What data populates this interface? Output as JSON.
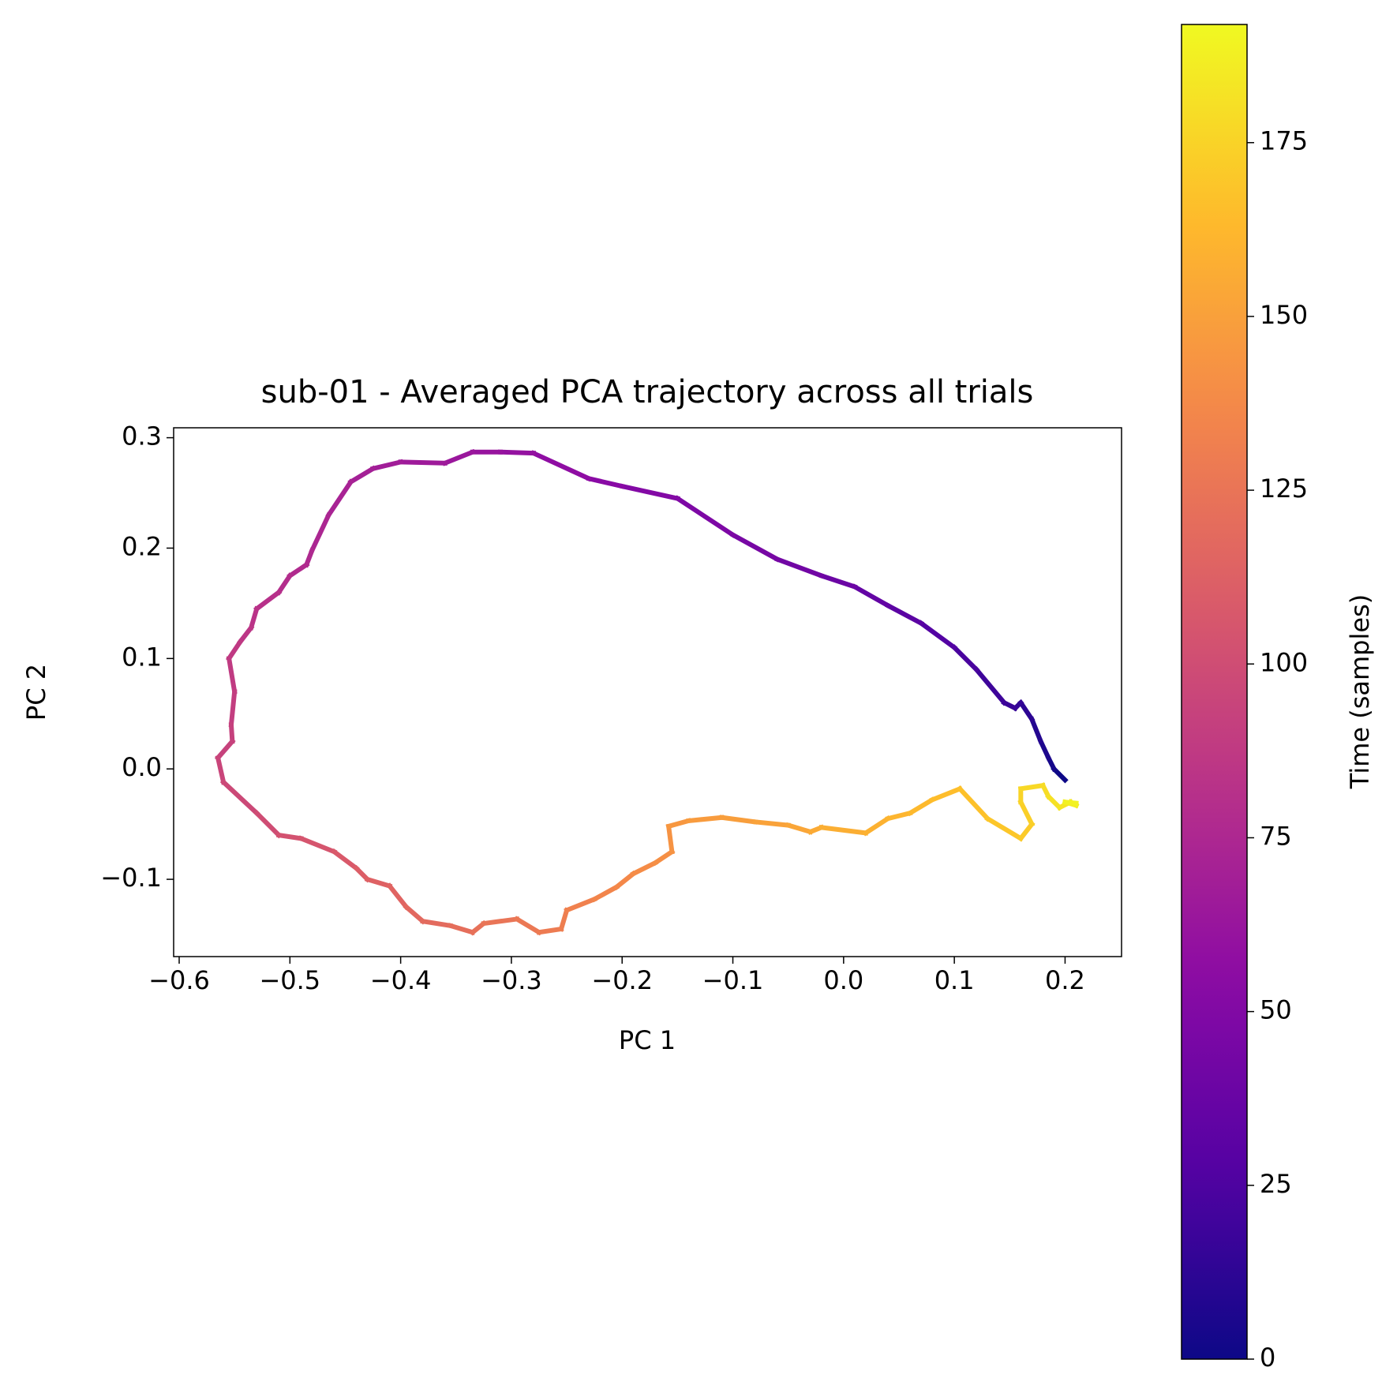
{
  "chart_data": {
    "type": "line",
    "title": "sub-01 - Averaged PCA trajectory across all trials",
    "x_label": "PC 1",
    "y_label": "PC 2",
    "colorbar_label": "Time (samples)",
    "colormap": "plasma",
    "clim": [
      0,
      192
    ],
    "cticks": [
      0,
      25,
      50,
      75,
      100,
      125,
      150,
      175
    ],
    "xlim": [
      -0.605,
      0.251
    ],
    "ylim": [
      -0.17,
      0.309
    ],
    "xticks": [
      {
        "value": -0.6,
        "label": "−0.6"
      },
      {
        "value": -0.5,
        "label": "−0.5"
      },
      {
        "value": -0.4,
        "label": "−0.4"
      },
      {
        "value": -0.3,
        "label": "−0.3"
      },
      {
        "value": -0.2,
        "label": "−0.2"
      },
      {
        "value": -0.1,
        "label": "−0.1"
      },
      {
        "value": 0,
        "label": "0.0"
      },
      0.1,
      0.2
    ],
    "yticks": [
      {
        "value": -0.1,
        "label": "−0.1"
      },
      {
        "value": 0,
        "label": "0.0"
      },
      0.1,
      0.2,
      0.3
    ],
    "series": [
      {
        "time": [
          0,
          3,
          6,
          9,
          12,
          15,
          17,
          19,
          23,
          27,
          31,
          35,
          39,
          42,
          45,
          48,
          51,
          54,
          57,
          60,
          62,
          64,
          66,
          68,
          70,
          72,
          74,
          76,
          77,
          79,
          81,
          83,
          85,
          87,
          88,
          90,
          92,
          93,
          95,
          97,
          100,
          103,
          105,
          108,
          111,
          113,
          115,
          117,
          119,
          121,
          123,
          125,
          127,
          129,
          131,
          133,
          135,
          137,
          139,
          141,
          143,
          145,
          147,
          149,
          151,
          153,
          155,
          157,
          159,
          161,
          163,
          165,
          167,
          169,
          171,
          173,
          175,
          177,
          179,
          181,
          183,
          185,
          187,
          189,
          191
        ],
        "x": [
          0.2,
          0.19,
          0.185,
          0.178,
          0.17,
          0.16,
          0.155,
          0.145,
          0.12,
          0.1,
          0.07,
          0.04,
          0.01,
          -0.02,
          -0.06,
          -0.1,
          -0.15,
          -0.2,
          -0.23,
          -0.28,
          -0.31,
          -0.335,
          -0.36,
          -0.4,
          -0.425,
          -0.445,
          -0.465,
          -0.48,
          -0.485,
          -0.5,
          -0.51,
          -0.53,
          -0.535,
          -0.545,
          -0.555,
          -0.55,
          -0.553,
          -0.552,
          -0.565,
          -0.56,
          -0.53,
          -0.51,
          -0.49,
          -0.46,
          -0.44,
          -0.43,
          -0.41,
          -0.395,
          -0.38,
          -0.355,
          -0.335,
          -0.325,
          -0.295,
          -0.275,
          -0.255,
          -0.25,
          -0.225,
          -0.205,
          -0.19,
          -0.17,
          -0.155,
          -0.158,
          -0.14,
          -0.11,
          -0.08,
          -0.05,
          -0.03,
          -0.02,
          0.02,
          0.04,
          0.06,
          0.08,
          0.105,
          0.13,
          0.16,
          0.17,
          0.16,
          0.16,
          0.18,
          0.185,
          0.195,
          0.205,
          0.21,
          0.2,
          0.21
        ],
        "values": [
          -0.01,
          0.0,
          0.01,
          0.025,
          0.045,
          0.06,
          0.055,
          0.06,
          0.09,
          0.11,
          0.132,
          0.148,
          0.165,
          0.175,
          0.19,
          0.212,
          0.245,
          0.256,
          0.263,
          0.286,
          0.287,
          0.287,
          0.277,
          0.278,
          0.272,
          0.26,
          0.23,
          0.198,
          0.185,
          0.175,
          0.16,
          0.145,
          0.128,
          0.115,
          0.1,
          0.07,
          0.04,
          0.025,
          0.01,
          -0.012,
          -0.04,
          -0.06,
          -0.063,
          -0.075,
          -0.09,
          -0.1,
          -0.106,
          -0.125,
          -0.138,
          -0.142,
          -0.148,
          -0.14,
          -0.136,
          -0.148,
          -0.145,
          -0.128,
          -0.118,
          -0.107,
          -0.095,
          -0.085,
          -0.075,
          -0.052,
          -0.047,
          -0.044,
          -0.048,
          -0.051,
          -0.057,
          -0.053,
          -0.058,
          -0.045,
          -0.04,
          -0.028,
          -0.018,
          -0.045,
          -0.063,
          -0.05,
          -0.03,
          -0.018,
          -0.015,
          -0.025,
          -0.035,
          -0.03,
          -0.033,
          -0.03,
          -0.031
        ]
      }
    ]
  }
}
